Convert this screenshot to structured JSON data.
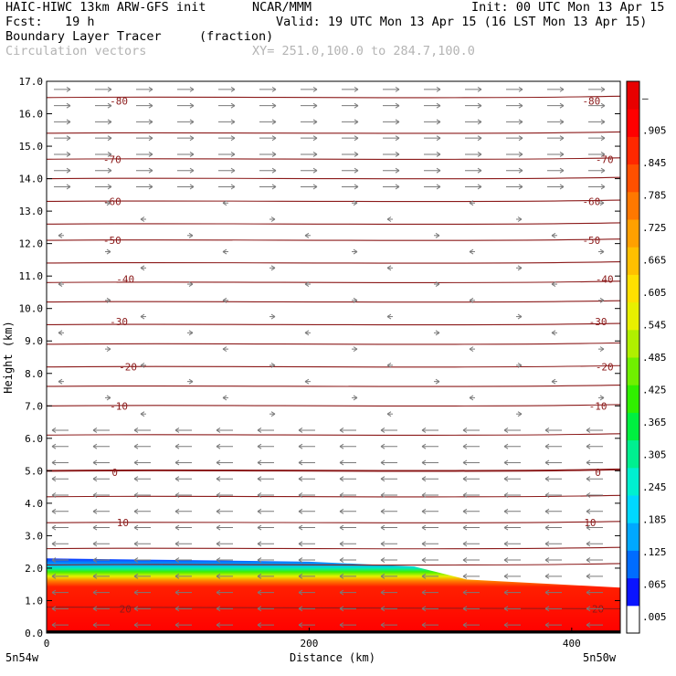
{
  "header": {
    "model": "HAIC-HIWC 13km ARW-GFS init",
    "org": "NCAR/MMM",
    "init": "Init: 00 UTC Mon 13 Apr 15",
    "fcst": "Fcst:   19 h",
    "valid": "Valid: 19 UTC Mon 13 Apr 15 (16 LST Mon 13 Apr 15)",
    "field": "Boundary Layer Tracer",
    "field_units": "(fraction)",
    "overlay": "Circulation vectors",
    "xsect": "XY= 251.0,100.0 to 284.7,100.0"
  },
  "colors": {
    "temperature_contour": "#8b1a1a",
    "vector": "#7a7a7a",
    "tracer_high": "#ff1a00",
    "tracer_low": "#1a3cff"
  },
  "chart_data": {
    "type": "heatmap",
    "title": "Boundary Layer Tracer",
    "xlabel": "Distance (km)",
    "ylabel": "Height (km)",
    "xlim": [
      0,
      437
    ],
    "ylim": [
      0,
      17
    ],
    "x_ticks": [
      0,
      200,
      400
    ],
    "y_ticks": [
      "0.0",
      "1.0",
      "2.0",
      "3.0",
      "4.0",
      "5.0",
      "6.0",
      "7.0",
      "8.0",
      "9.0",
      "10.0",
      "11.0",
      "12.0",
      "13.0",
      "14.0",
      "15.0",
      "16.0",
      "17.0"
    ],
    "x_endpoints": {
      "left": "5n54w",
      "right": "5n50w"
    },
    "colorbar": {
      "labels": [
        ".005",
        ".065",
        ".125",
        ".185",
        ".245",
        ".305",
        ".365",
        ".425",
        ".485",
        ".545",
        ".605",
        ".665",
        ".725",
        ".785",
        ".845",
        ".905",
        "–"
      ],
      "colors": [
        "#ffffff",
        "#0a14ff",
        "#006cff",
        "#00a8ff",
        "#00d8ff",
        "#00f0d0",
        "#00f090",
        "#00f040",
        "#30f000",
        "#70f000",
        "#b0f000",
        "#e8f000",
        "#ffe000",
        "#ffc000",
        "#ffa000",
        "#ff7800",
        "#ff5000",
        "#ff2800",
        "#ff0000",
        "#e80000"
      ]
    },
    "tracer_top_km": {
      "x": [
        0,
        100,
        200,
        280,
        320,
        437
      ],
      "y": [
        2.3,
        2.25,
        2.2,
        2.05,
        1.65,
        1.4
      ]
    },
    "temperature_contours": {
      "levels": [
        -80,
        -70,
        -60,
        -50,
        -40,
        -30,
        -20,
        -10,
        0,
        10,
        20
      ],
      "labels": [
        {
          "text": "-80",
          "x": 55,
          "y": 16.4
        },
        {
          "text": "-80",
          "x": 415,
          "y": 16.4
        },
        {
          "text": "-70",
          "x": 50,
          "y": 14.6
        },
        {
          "text": "-70",
          "x": 425,
          "y": 14.6
        },
        {
          "text": "-60",
          "x": 50,
          "y": 13.3
        },
        {
          "text": "-60",
          "x": 415,
          "y": 13.3
        },
        {
          "text": "-50",
          "x": 50,
          "y": 12.1
        },
        {
          "text": "-50",
          "x": 415,
          "y": 12.1
        },
        {
          "text": "-40",
          "x": 60,
          "y": 10.9
        },
        {
          "text": "-40",
          "x": 425,
          "y": 10.9
        },
        {
          "text": "-30",
          "x": 55,
          "y": 9.6
        },
        {
          "text": "-30",
          "x": 420,
          "y": 9.6
        },
        {
          "text": "-20",
          "x": 62,
          "y": 8.2
        },
        {
          "text": "-20",
          "x": 425,
          "y": 8.2
        },
        {
          "text": "-10",
          "x": 55,
          "y": 7.0
        },
        {
          "text": "-10",
          "x": 420,
          "y": 7.0
        },
        {
          "text": "0",
          "x": 52,
          "y": 4.95
        },
        {
          "text": "0",
          "x": 420,
          "y": 4.95
        },
        {
          "text": "10",
          "x": 58,
          "y": 3.4
        },
        {
          "text": "10",
          "x": 414,
          "y": 3.4
        },
        {
          "text": "20",
          "x": 60,
          "y": 0.75
        },
        {
          "text": "20",
          "x": 420,
          "y": 0.75
        }
      ]
    },
    "wind_regimes": [
      {
        "from_km": 0,
        "to_km": 2.5,
        "direction": "west"
      },
      {
        "from_km": 2.5,
        "to_km": 6.5,
        "direction": "west"
      },
      {
        "from_km": 6.5,
        "to_km": 13.5,
        "direction": "variable"
      },
      {
        "from_km": 13.5,
        "to_km": 17,
        "direction": "east"
      }
    ]
  }
}
